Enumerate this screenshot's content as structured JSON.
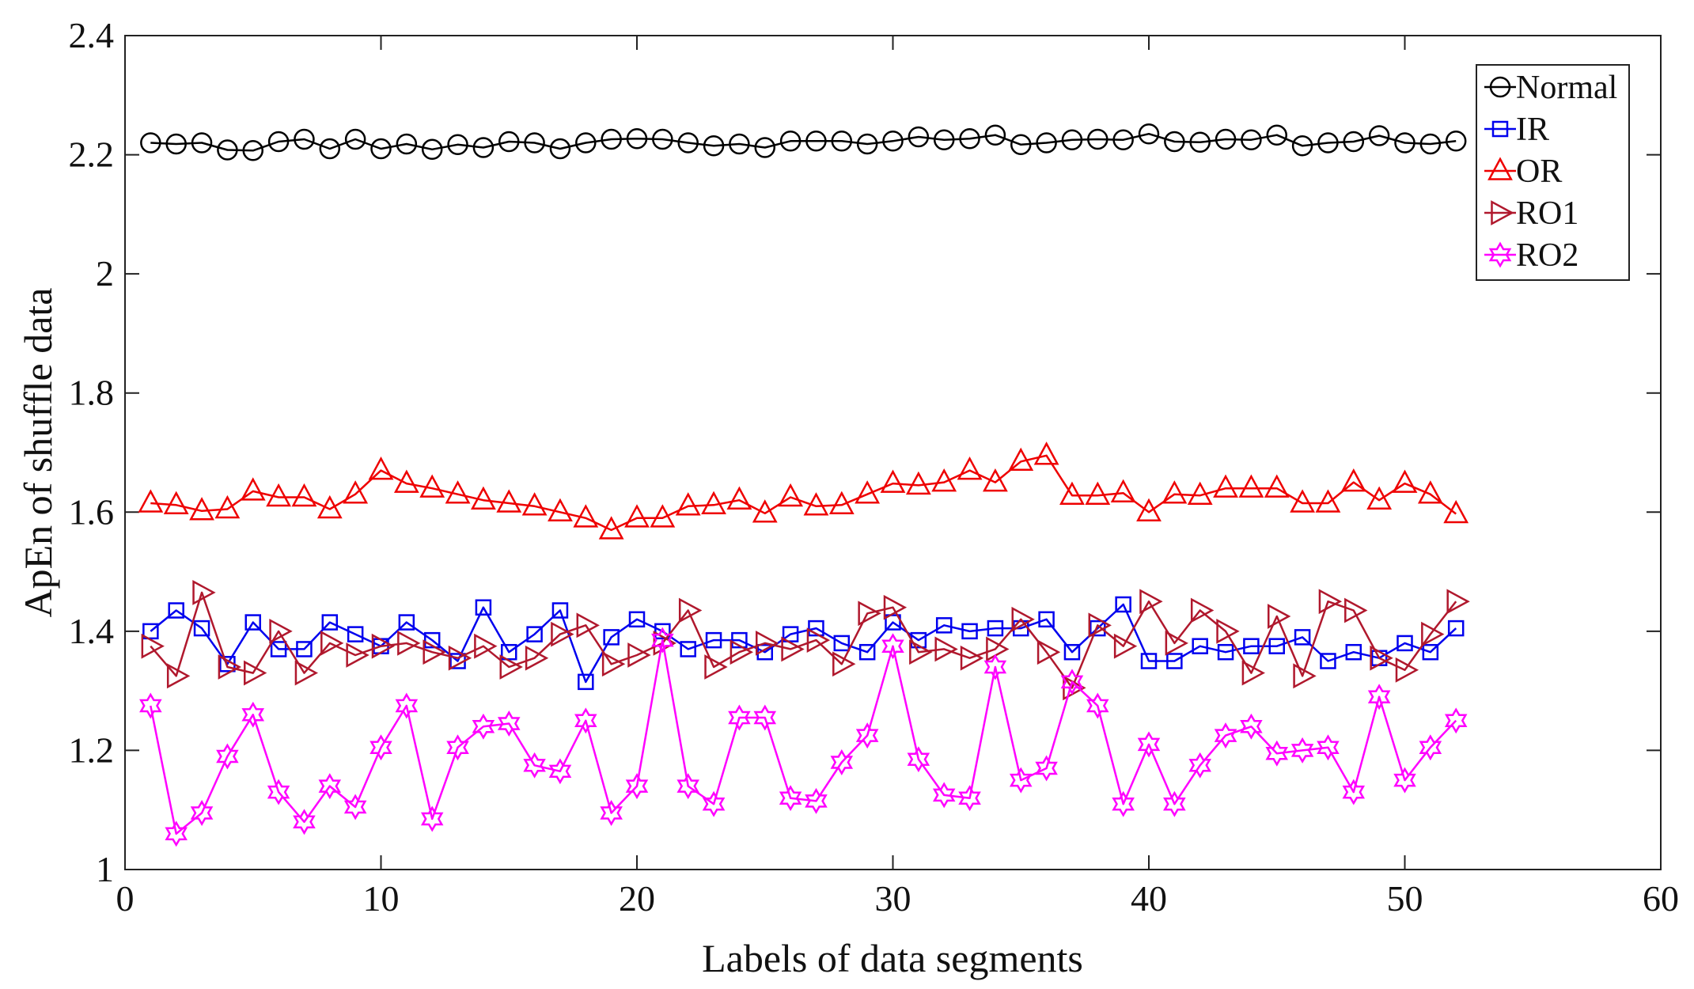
{
  "chart_data": {
    "type": "line",
    "title": "",
    "xlabel": "Labels of data segments",
    "ylabel": "ApEn of shuffle data",
    "xlim": [
      0,
      60
    ],
    "ylim": [
      1,
      2.4
    ],
    "xticks": [
      0,
      10,
      20,
      30,
      40,
      50,
      60
    ],
    "yticks": [
      1,
      1.2,
      1.4,
      1.6,
      1.8,
      2,
      2.2,
      2.4
    ],
    "ytick_labels": [
      "1",
      "1.2",
      "1.4",
      "1.6",
      "1.8",
      "2",
      "2.2",
      "2.4"
    ],
    "grid": false,
    "legend_position": "top-right",
    "x": [
      1,
      2,
      3,
      4,
      5,
      6,
      7,
      8,
      9,
      10,
      11,
      12,
      13,
      14,
      15,
      16,
      17,
      18,
      19,
      20,
      21,
      22,
      23,
      24,
      25,
      26,
      27,
      28,
      29,
      30,
      31,
      32,
      33,
      34,
      35,
      36,
      37,
      38,
      39,
      40,
      41,
      42,
      43,
      44,
      45,
      46,
      47,
      48,
      49,
      50,
      51,
      52
    ],
    "series": [
      {
        "name": "Normal",
        "color": "#000000",
        "marker": "circle",
        "values": [
          2.22,
          2.218,
          2.22,
          2.208,
          2.207,
          2.222,
          2.226,
          2.21,
          2.226,
          2.21,
          2.218,
          2.209,
          2.217,
          2.212,
          2.222,
          2.22,
          2.21,
          2.22,
          2.226,
          2.227,
          2.226,
          2.22,
          2.215,
          2.218,
          2.212,
          2.223,
          2.223,
          2.223,
          2.218,
          2.223,
          2.23,
          2.225,
          2.227,
          2.233,
          2.217,
          2.22,
          2.225,
          2.226,
          2.225,
          2.235,
          2.222,
          2.221,
          2.226,
          2.225,
          2.233,
          2.215,
          2.22,
          2.222,
          2.232,
          2.22,
          2.218,
          2.223
        ]
      },
      {
        "name": "IR",
        "color": "#0000ee",
        "marker": "square",
        "values": [
          1.4,
          1.435,
          1.405,
          1.345,
          1.415,
          1.37,
          1.37,
          1.415,
          1.395,
          1.375,
          1.415,
          1.385,
          1.35,
          1.44,
          1.365,
          1.395,
          1.435,
          1.315,
          1.39,
          1.42,
          1.4,
          1.37,
          1.385,
          1.385,
          1.365,
          1.395,
          1.405,
          1.38,
          1.365,
          1.415,
          1.385,
          1.41,
          1.4,
          1.405,
          1.405,
          1.42,
          1.365,
          1.405,
          1.445,
          1.35,
          1.35,
          1.375,
          1.365,
          1.375,
          1.375,
          1.39,
          1.35,
          1.365,
          1.355,
          1.38,
          1.365,
          1.405
        ]
      },
      {
        "name": "OR",
        "color": "#ee0000",
        "marker": "triangle-up",
        "values": [
          1.615,
          1.612,
          1.602,
          1.605,
          1.635,
          1.625,
          1.625,
          1.605,
          1.63,
          1.67,
          1.648,
          1.64,
          1.63,
          1.62,
          1.615,
          1.61,
          1.6,
          1.59,
          1.57,
          1.59,
          1.59,
          1.61,
          1.612,
          1.62,
          1.598,
          1.625,
          1.61,
          1.612,
          1.63,
          1.648,
          1.645,
          1.65,
          1.67,
          1.65,
          1.685,
          1.695,
          1.628,
          1.628,
          1.632,
          1.6,
          1.63,
          1.628,
          1.64,
          1.64,
          1.64,
          1.615,
          1.615,
          1.65,
          1.62,
          1.648,
          1.63,
          1.597
        ]
      },
      {
        "name": "RO1",
        "color": "#b0182d",
        "marker": "triangle-right",
        "values": [
          1.375,
          1.325,
          1.465,
          1.34,
          1.33,
          1.4,
          1.33,
          1.38,
          1.36,
          1.375,
          1.38,
          1.365,
          1.355,
          1.375,
          1.34,
          1.355,
          1.395,
          1.41,
          1.345,
          1.36,
          1.38,
          1.435,
          1.34,
          1.365,
          1.38,
          1.37,
          1.385,
          1.345,
          1.43,
          1.44,
          1.365,
          1.37,
          1.355,
          1.37,
          1.42,
          1.365,
          1.305,
          1.41,
          1.375,
          1.45,
          1.38,
          1.435,
          1.4,
          1.33,
          1.425,
          1.325,
          1.45,
          1.435,
          1.355,
          1.335,
          1.395,
          1.45
        ]
      },
      {
        "name": "RO2",
        "color": "#ff00ff",
        "marker": "hexagram",
        "values": [
          1.275,
          1.06,
          1.095,
          1.19,
          1.26,
          1.13,
          1.08,
          1.14,
          1.105,
          1.205,
          1.275,
          1.085,
          1.205,
          1.24,
          1.245,
          1.175,
          1.165,
          1.25,
          1.095,
          1.14,
          1.385,
          1.14,
          1.11,
          1.255,
          1.255,
          1.12,
          1.115,
          1.18,
          1.225,
          1.375,
          1.185,
          1.125,
          1.12,
          1.34,
          1.15,
          1.17,
          1.315,
          1.275,
          1.11,
          1.21,
          1.11,
          1.175,
          1.225,
          1.24,
          1.195,
          1.2,
          1.205,
          1.13,
          1.29,
          1.15,
          1.205,
          1.25
        ]
      }
    ]
  }
}
